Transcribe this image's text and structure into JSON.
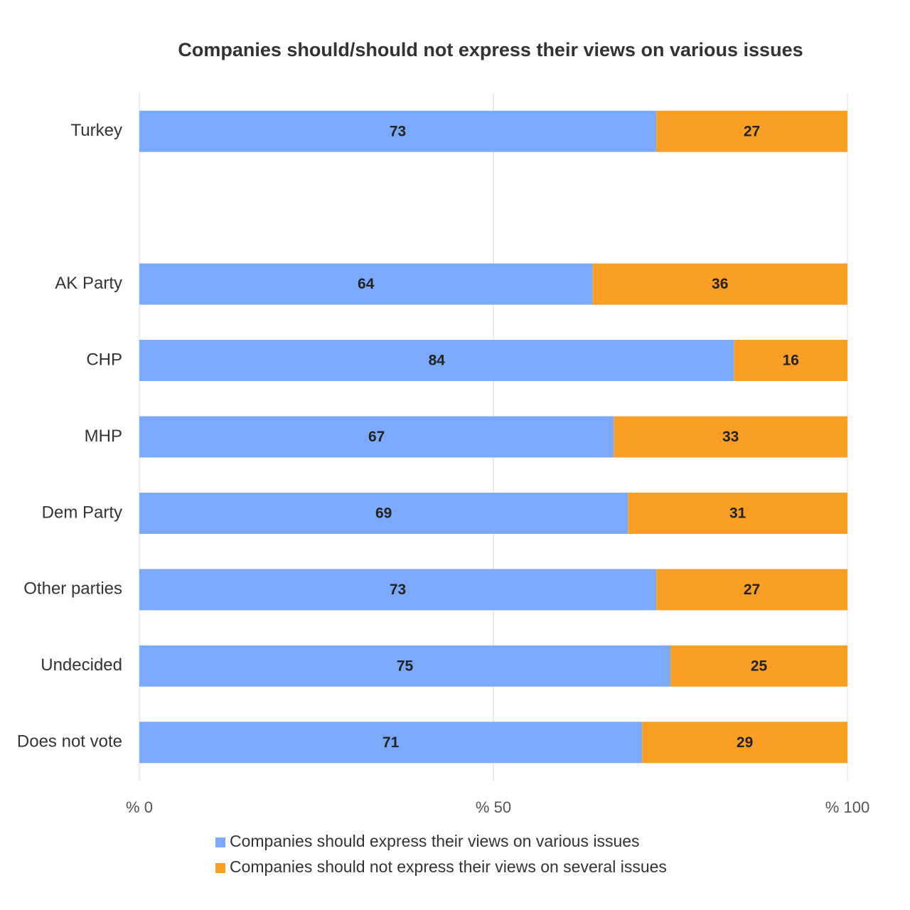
{
  "chart_data": {
    "type": "stacked_bar_horizontal",
    "title": "Companies should/should not express their views on various issues",
    "categories": [
      "Turkey",
      null,
      "AK Party",
      "CHP",
      "MHP",
      "Dem Party",
      "Other parties",
      "Undecided",
      "Does not vote"
    ],
    "series": [
      {
        "name": "Companies should express their views on various issues",
        "color": "#7ba9fb",
        "values": [
          73,
          null,
          64,
          84,
          67,
          69,
          73,
          75,
          71
        ]
      },
      {
        "name": "Companies should not express their views on several issues",
        "color": "#fb9e24",
        "values": [
          27,
          null,
          36,
          16,
          33,
          31,
          27,
          25,
          29
        ]
      }
    ],
    "xlim": [
      0,
      100
    ],
    "xticks": [
      {
        "value": 0,
        "label": "% 0"
      },
      {
        "value": 50,
        "label": "% 50"
      },
      {
        "value": 100,
        "label": "% 100"
      }
    ],
    "grid": true,
    "legend": "bottom"
  }
}
